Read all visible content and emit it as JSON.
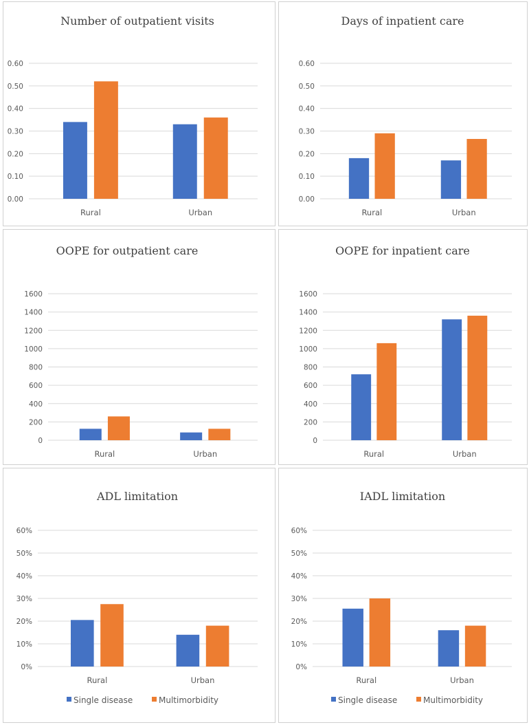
{
  "colors": {
    "single": "#4472c4",
    "multi": "#ed7d31",
    "grid": "#d9d9d9",
    "border": "#d0d0d0"
  },
  "legend": [
    "Single disease",
    "Multimorbidity"
  ],
  "chart_data": [
    {
      "type": "bar",
      "title": "Number of outpatient visits",
      "categories": [
        "Rural",
        "Urban"
      ],
      "ylim": [
        0,
        0.6
      ],
      "yticks": [
        "0.00",
        "0.10",
        "0.20",
        "0.30",
        "0.40",
        "0.50",
        "0.60"
      ],
      "tick_values": [
        0,
        0.1,
        0.2,
        0.3,
        0.4,
        0.5,
        0.6
      ],
      "series": [
        {
          "name": "Single disease",
          "values": [
            0.34,
            0.33
          ]
        },
        {
          "name": "Multimorbidity",
          "values": [
            0.52,
            0.36
          ]
        }
      ],
      "legend": false
    },
    {
      "type": "bar",
      "title": "Days of inpatient care",
      "categories": [
        "Rural",
        "Urban"
      ],
      "ylim": [
        0,
        0.6
      ],
      "yticks": [
        "0.00",
        "0.10",
        "0.20",
        "0.30",
        "0.40",
        "0.50",
        "0.60"
      ],
      "tick_values": [
        0,
        0.1,
        0.2,
        0.3,
        0.4,
        0.5,
        0.6
      ],
      "series": [
        {
          "name": "Single disease",
          "values": [
            0.18,
            0.17
          ]
        },
        {
          "name": "Multimorbidity",
          "values": [
            0.29,
            0.265
          ]
        }
      ],
      "legend": false
    },
    {
      "type": "bar",
      "title": "OOPE for outpatient care",
      "categories": [
        "Rural",
        "Urban"
      ],
      "ylim": [
        0,
        1600
      ],
      "yticks": [
        "0",
        "200",
        "400",
        "600",
        "800",
        "1000",
        "1200",
        "1400",
        "1600"
      ],
      "tick_values": [
        0,
        200,
        400,
        600,
        800,
        1000,
        1200,
        1400,
        1600
      ],
      "series": [
        {
          "name": "Single disease",
          "values": [
            125,
            85
          ]
        },
        {
          "name": "Multimorbidity",
          "values": [
            260,
            125
          ]
        }
      ],
      "legend": false
    },
    {
      "type": "bar",
      "title": "OOPE for inpatient care",
      "categories": [
        "Rural",
        "Urban"
      ],
      "ylim": [
        0,
        1600
      ],
      "yticks": [
        "0",
        "200",
        "400",
        "600",
        "800",
        "1000",
        "1200",
        "1400",
        "1600"
      ],
      "tick_values": [
        0,
        200,
        400,
        600,
        800,
        1000,
        1200,
        1400,
        1600
      ],
      "series": [
        {
          "name": "Single disease",
          "values": [
            720,
            1320
          ]
        },
        {
          "name": "Multimorbidity",
          "values": [
            1060,
            1360
          ]
        }
      ],
      "legend": false
    },
    {
      "type": "bar",
      "title": "ADL limitation",
      "categories": [
        "Rural",
        "Urban"
      ],
      "ylim": [
        0,
        60
      ],
      "yticks": [
        "0%",
        "10%",
        "20%",
        "30%",
        "40%",
        "50%",
        "60%"
      ],
      "tick_values": [
        0,
        10,
        20,
        30,
        40,
        50,
        60
      ],
      "series": [
        {
          "name": "Single disease",
          "values": [
            20.5,
            14
          ]
        },
        {
          "name": "Multimorbidity",
          "values": [
            27.5,
            18
          ]
        }
      ],
      "legend": true
    },
    {
      "type": "bar",
      "title": "IADL limitation",
      "categories": [
        "Rural",
        "Urban"
      ],
      "ylim": [
        0,
        60
      ],
      "yticks": [
        "0%",
        "10%",
        "20%",
        "30%",
        "40%",
        "50%",
        "60%"
      ],
      "tick_values": [
        0,
        10,
        20,
        30,
        40,
        50,
        60
      ],
      "series": [
        {
          "name": "Single disease",
          "values": [
            25.5,
            16
          ]
        },
        {
          "name": "Multimorbidity",
          "values": [
            30,
            18
          ]
        }
      ],
      "legend": true
    }
  ]
}
